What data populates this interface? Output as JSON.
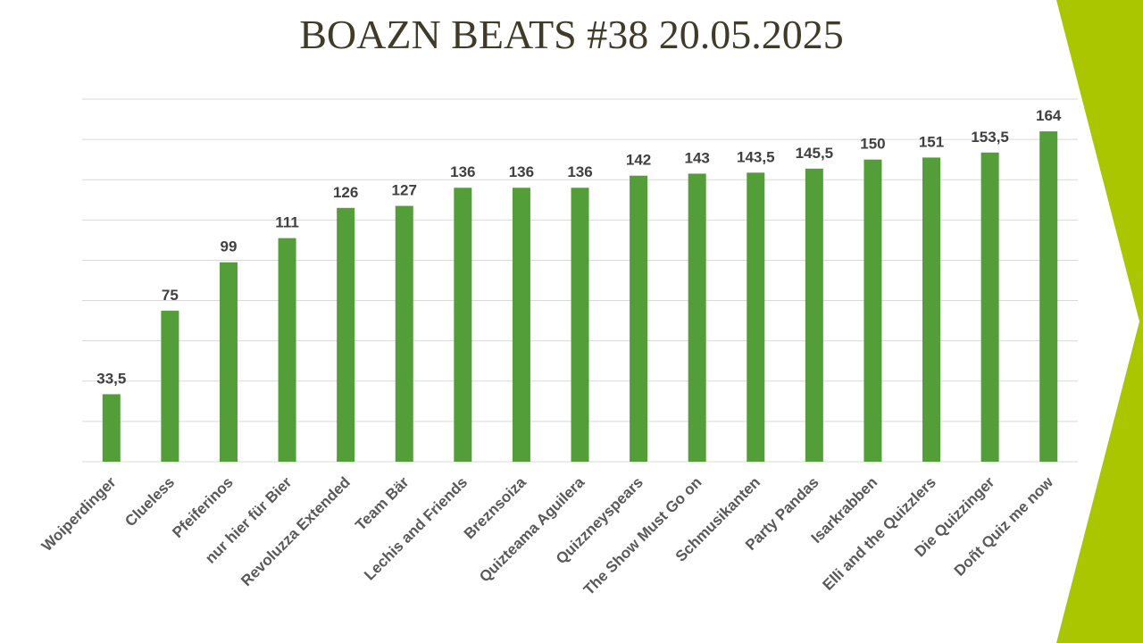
{
  "chart_data": {
    "type": "bar",
    "title": "BOAZN BEATS #38 20.05.2025",
    "categories": [
      "Woiperdinger",
      "Clueless",
      "Pfeiferinos",
      "nur hier für Bier",
      "Revoluzza Extended",
      "Team Bär",
      "Lechis and Friends",
      "Breznsoiza",
      "Quizteama Aguilera",
      "Quizzneyspears",
      "The Show Must Go on",
      "Schmusikanten",
      "Party Pandas",
      "Isarkrabben",
      "Elli and the Quizzlers",
      "Die Quizzinger",
      "Doñt Quiz me now"
    ],
    "values": [
      33.5,
      75,
      99,
      111,
      126,
      127,
      136,
      136,
      136,
      142,
      143,
      143.5,
      145.5,
      150,
      151,
      153.5,
      164
    ],
    "value_labels": [
      "33,5",
      "75",
      "99",
      "111",
      "126",
      "127",
      "136",
      "136",
      "136",
      "142",
      "143",
      "143,5",
      "145,5",
      "150",
      "151",
      "153,5",
      "164"
    ],
    "color": "#549e39",
    "ylim": [
      0,
      180
    ],
    "yticks": [
      0,
      20,
      40,
      60,
      80,
      100,
      120,
      140,
      160,
      180
    ],
    "grid": true
  }
}
